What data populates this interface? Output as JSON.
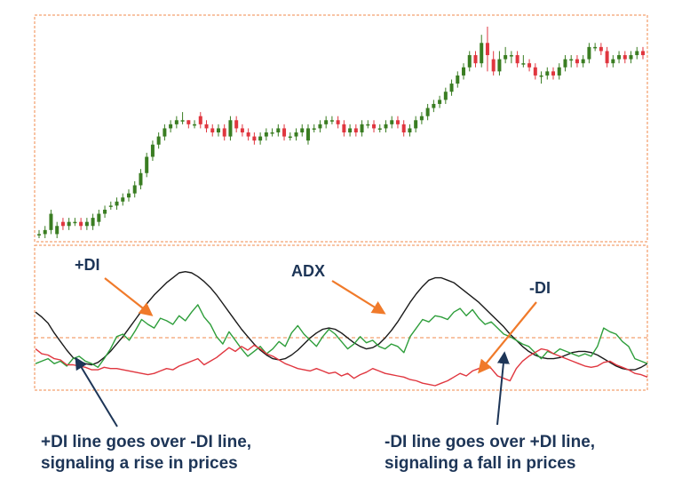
{
  "colors": {
    "up": "#3a7d22",
    "down": "#e0363f",
    "frame": "#f08a4b",
    "adx": "#1a1a1a",
    "plus_di": "#2e9e3b",
    "minus_di": "#e0363f",
    "text": "#1d3557",
    "arrow_orange": "#f07a2a",
    "arrow_navy": "#1d3557"
  },
  "labels": {
    "plus_di": "+DI",
    "adx": "ADX",
    "minus_di": "-DI"
  },
  "annotations": {
    "cross_up_line1": "+DI line goes over -DI line,",
    "cross_up_line2": "signaling a rise in prices",
    "cross_down_line1": "-DI line goes over +DI line,",
    "cross_down_line2": "signaling a fall in prices"
  },
  "chart_data": [
    {
      "type": "candlestick",
      "title": "",
      "grid": false,
      "candles": {
        "open": [
          10,
          10,
          11,
          10,
          13,
          12,
          13,
          13,
          12,
          12,
          13,
          15,
          17,
          17,
          18,
          19,
          20,
          22,
          25,
          29,
          32,
          34,
          36,
          37,
          38,
          38,
          37,
          39,
          37,
          36,
          35,
          36,
          34,
          38,
          36,
          35,
          34,
          33,
          34,
          35,
          35,
          36,
          34,
          34,
          35,
          33,
          36,
          36,
          37,
          38,
          38,
          37,
          35,
          36,
          35,
          37,
          37,
          36,
          36,
          37,
          38,
          37,
          35,
          36,
          38,
          39,
          41,
          42,
          43,
          45,
          47,
          49,
          51,
          54,
          52,
          57,
          53,
          50,
          53,
          54,
          54,
          52,
          52,
          51,
          49,
          49,
          50,
          49,
          51,
          53,
          53,
          52,
          53,
          56,
          56,
          55,
          52,
          53,
          54,
          53,
          54,
          55
        ],
        "close": [
          10,
          11,
          15,
          12,
          12,
          13,
          13,
          12,
          13,
          14,
          15,
          16,
          17,
          18,
          19,
          20,
          22,
          25,
          29,
          32,
          34,
          36,
          37,
          38,
          38,
          37,
          37,
          37,
          36,
          35,
          36,
          34,
          38,
          36,
          35,
          34,
          33,
          34,
          35,
          35,
          36,
          34,
          34,
          35,
          36,
          36,
          36,
          37,
          38,
          38,
          37,
          35,
          36,
          35,
          37,
          37,
          36,
          36,
          37,
          38,
          37,
          35,
          36,
          38,
          39,
          41,
          42,
          43,
          45,
          47,
          49,
          51,
          54,
          52,
          57,
          54,
          50,
          53,
          54,
          54,
          52,
          52,
          51,
          49,
          49,
          50,
          49,
          51,
          53,
          53,
          52,
          53,
          56,
          56,
          55,
          52,
          53,
          54,
          53,
          54,
          55,
          54
        ],
        "high": [
          11,
          12,
          16,
          13,
          14,
          14,
          14,
          14,
          14,
          15,
          16,
          17,
          18,
          19,
          20,
          21,
          23,
          26,
          30,
          33,
          35,
          37,
          38,
          39,
          40,
          38,
          38,
          40,
          38,
          37,
          37,
          37,
          39,
          39,
          37,
          36,
          35,
          35,
          36,
          36,
          37,
          37,
          35,
          36,
          37,
          37,
          37,
          38,
          39,
          39,
          39,
          38,
          37,
          37,
          38,
          38,
          38,
          37,
          38,
          39,
          39,
          38,
          37,
          39,
          40,
          42,
          43,
          44,
          46,
          48,
          50,
          52,
          55,
          55,
          59,
          61,
          55,
          55,
          56,
          55,
          55,
          54,
          53,
          52,
          50,
          51,
          51,
          52,
          54,
          54,
          54,
          54,
          57,
          57,
          57,
          56,
          54,
          55,
          55,
          55,
          56,
          56
        ],
        "low": [
          9,
          9,
          10,
          9,
          11,
          11,
          12,
          11,
          11,
          11,
          12,
          14,
          16,
          16,
          17,
          18,
          19,
          21,
          24,
          28,
          31,
          33,
          35,
          36,
          37,
          36,
          36,
          36,
          35,
          34,
          34,
          33,
          33,
          35,
          34,
          33,
          32,
          32,
          33,
          34,
          34,
          33,
          33,
          33,
          34,
          32,
          35,
          35,
          36,
          37,
          36,
          34,
          34,
          34,
          34,
          36,
          35,
          35,
          35,
          36,
          36,
          34,
          34,
          35,
          37,
          38,
          40,
          41,
          42,
          44,
          46,
          48,
          50,
          51,
          51,
          50,
          49,
          49,
          52,
          52,
          51,
          51,
          50,
          48,
          47,
          48,
          48,
          48,
          50,
          51,
          51,
          51,
          52,
          55,
          54,
          51,
          51,
          52,
          52,
          52,
          53,
          53
        ]
      }
    },
    {
      "type": "line",
      "title": "",
      "grid": false,
      "series": [
        {
          "name": "ADX",
          "values": [
            60,
            56,
            51,
            43,
            36,
            29,
            23,
            20,
            18,
            17,
            19,
            23,
            28,
            34,
            40,
            47,
            54,
            61,
            68,
            74,
            79,
            84,
            88,
            92,
            93,
            92,
            89,
            85,
            80,
            74,
            67,
            60,
            53,
            46,
            40,
            34,
            29,
            25,
            22,
            21,
            22,
            25,
            29,
            34,
            39,
            43,
            46,
            47,
            46,
            43,
            39,
            35,
            32,
            30,
            31,
            34,
            39,
            45,
            52,
            60,
            68,
            75,
            81,
            86,
            88,
            88,
            86,
            84,
            80,
            76,
            72,
            68,
            63,
            58,
            53,
            48,
            42,
            37,
            32,
            28,
            25,
            23,
            22,
            22,
            23,
            25,
            27,
            28,
            28,
            27,
            25,
            22,
            19,
            16,
            14,
            13,
            13,
            15,
            18
          ]
        },
        {
          "name": "+DI",
          "values": [
            18,
            20,
            22,
            18,
            20,
            16,
            22,
            24,
            20,
            18,
            15,
            22,
            30,
            40,
            42,
            37,
            45,
            54,
            50,
            47,
            55,
            53,
            50,
            57,
            53,
            60,
            66,
            56,
            50,
            40,
            34,
            44,
            37,
            30,
            24,
            28,
            32,
            26,
            30,
            36,
            32,
            43,
            49,
            42,
            37,
            32,
            40,
            46,
            42,
            36,
            30,
            34,
            40,
            35,
            37,
            32,
            30,
            34,
            32,
            27,
            40,
            47,
            54,
            52,
            57,
            56,
            54,
            60,
            63,
            57,
            62,
            55,
            50,
            52,
            47,
            42,
            40,
            37,
            34,
            32,
            27,
            22,
            28,
            26,
            30,
            28,
            26,
            24,
            26,
            24,
            32,
            47,
            44,
            42,
            36,
            32,
            22,
            20,
            18
          ]
        },
        {
          "name": "-DI",
          "values": [
            30,
            26,
            25,
            22,
            21,
            17,
            17,
            16,
            15,
            13,
            13,
            15,
            14,
            14,
            13,
            12,
            11,
            10,
            9,
            10,
            12,
            14,
            13,
            16,
            18,
            20,
            22,
            17,
            20,
            23,
            27,
            31,
            28,
            32,
            29,
            33,
            30,
            26,
            24,
            21,
            18,
            16,
            14,
            13,
            12,
            14,
            12,
            10,
            11,
            8,
            10,
            6,
            9,
            11,
            14,
            12,
            10,
            9,
            8,
            7,
            5,
            4,
            2,
            1,
            0,
            2,
            4,
            7,
            10,
            8,
            12,
            14,
            17,
            14,
            8,
            6,
            4,
            14,
            20,
            24,
            27,
            30,
            29,
            26,
            24,
            22,
            20,
            18,
            16,
            15,
            16,
            19,
            20,
            17,
            15,
            13,
            10,
            9,
            7
          ]
        }
      ]
    }
  ]
}
